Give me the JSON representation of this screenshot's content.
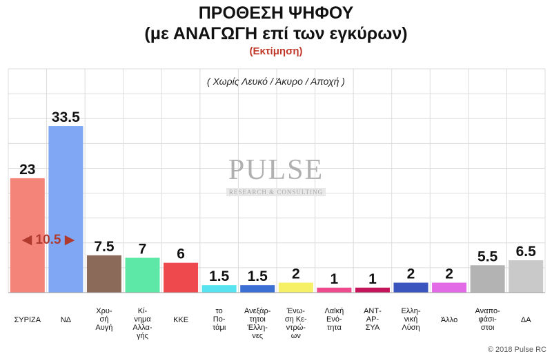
{
  "chart_data": {
    "type": "bar",
    "title": "ΠΡΟΘΕΣΗ ΨΗΦΟΥ",
    "title_line2": "(με ΑΝΑΓΩΓΗ επί των εγκύρων)",
    "subtitle": "(Εκτίμηση)",
    "note": "( Χωρίς Λευκό / Άκυρο / Αποχή )",
    "categories": [
      [
        "ΣΥΡΙΖΑ"
      ],
      [
        "ΝΔ"
      ],
      [
        "Χρυ-",
        "σή",
        "Αυγή"
      ],
      [
        "Κί-",
        "νημα",
        "Αλλα-",
        "γής"
      ],
      [
        "ΚΚΕ"
      ],
      [
        "το",
        "Πο-",
        "τάμι"
      ],
      [
        "Ανεξάρ-",
        "τητοι",
        "Έλλη-",
        "νες"
      ],
      [
        "Ένω-",
        "ση Κε-",
        "ντρώ-",
        "ων"
      ],
      [
        "Λαϊκή",
        "Ενό-",
        "τητα"
      ],
      [
        "ΑΝΤ-",
        "ΑΡ-",
        "ΣΥΑ"
      ],
      [
        "Ελλη-",
        "νική",
        "Λύση"
      ],
      [
        "Άλλο"
      ],
      [
        "Αναπο-",
        "φάσι-",
        "στοι"
      ],
      [
        "ΔΑ"
      ]
    ],
    "values": [
      23,
      33.5,
      7.5,
      7,
      6,
      1.5,
      1.5,
      2,
      1,
      1,
      2,
      2,
      5.5,
      6.5
    ],
    "value_labels": [
      "23",
      "33.5",
      "7.5",
      "7",
      "6",
      "1.5",
      "1.5",
      "2",
      "1",
      "1",
      "2",
      "2",
      "5.5",
      "6.5"
    ],
    "colors": [
      "#f4837a",
      "#7fa7f4",
      "#8c6a5a",
      "#5ee8a8",
      "#ee4a4e",
      "#57e3f0",
      "#3b6fd4",
      "#f5f066",
      "#ee4a8e",
      "#c4155a",
      "#3a55bd",
      "#e26ae6",
      "#b3b3b3",
      "#c9c9c9"
    ],
    "ylim": [
      0,
      45
    ],
    "grid": true,
    "difference_label": "10.5",
    "difference_color": "#b03a2e"
  },
  "watermark": {
    "main": "PULSE",
    "sub": "RESEARCH & CONSULTING"
  },
  "copyright": "© 2018 Pulse RC"
}
